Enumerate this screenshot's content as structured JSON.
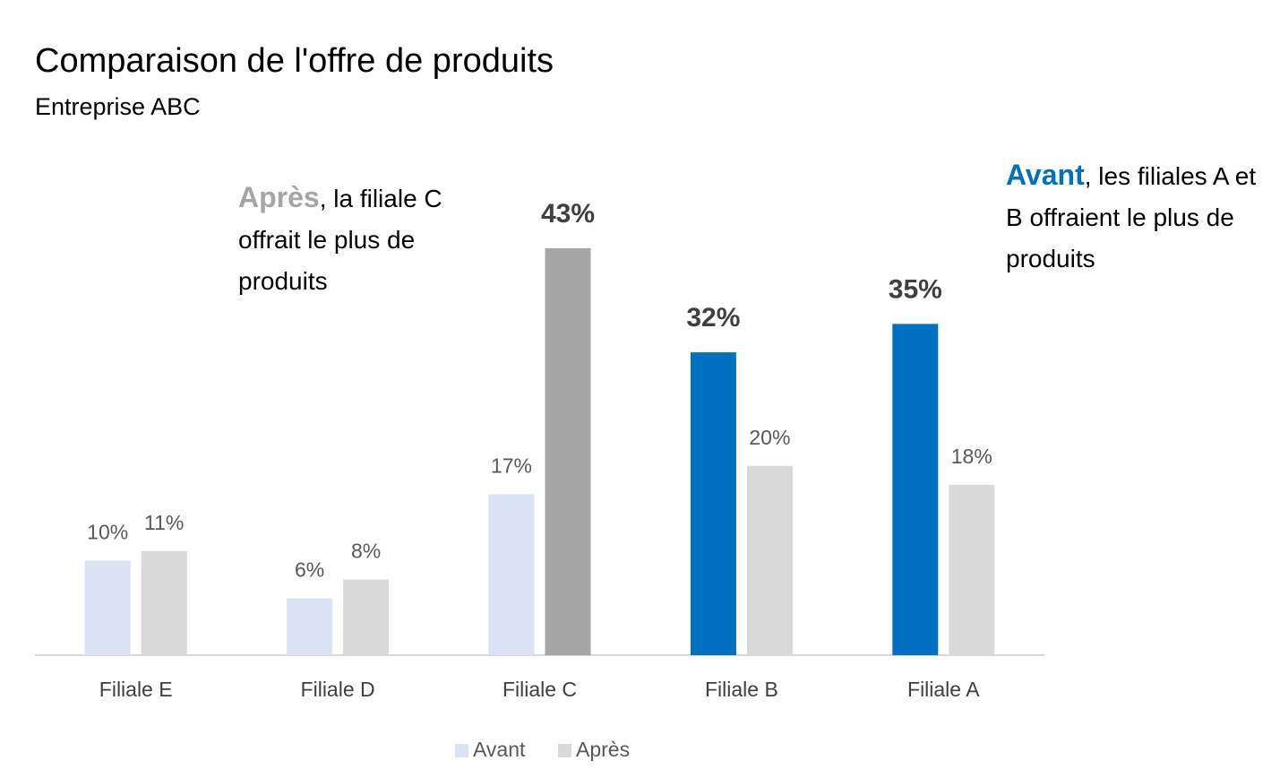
{
  "chart_data": {
    "type": "bar",
    "title": "Comparaison de l'offre de produits",
    "subtitle": "Entreprise ABC",
    "categories": [
      "Filiale E",
      "Filiale D",
      "Filiale C",
      "Filiale B",
      "Filiale A"
    ],
    "series": [
      {
        "name": "Avant",
        "color": "#dae3f3",
        "bar_colors": [
          "#dae3f3",
          "#dae3f3",
          "#dae3f3",
          "#0070c0",
          "#0070c0"
        ],
        "values": [
          10,
          6,
          17,
          32,
          35
        ],
        "value_labels": [
          "10%",
          "6%",
          "17%",
          "32%",
          "35%"
        ]
      },
      {
        "name": "Après",
        "color": "#d9d9d9",
        "bar_colors": [
          "#d9d9d9",
          "#d9d9d9",
          "#a6a6a6",
          "#d9d9d9",
          "#d9d9d9"
        ],
        "values": [
          11,
          8,
          43,
          20,
          18
        ],
        "value_labels": [
          "11%",
          "8%",
          "43%",
          "20%",
          "18%"
        ]
      }
    ],
    "ylim": [
      0,
      50
    ],
    "legend": "bottom",
    "annotations": [
      {
        "parts": [
          {
            "text": "Après",
            "color": "#a6a6a6",
            "bold": true
          },
          {
            "text": ", la filiale C offrait le plus de produits"
          }
        ]
      },
      {
        "parts": [
          {
            "text": "Avant",
            "color": "#0070c0",
            "bold": true
          },
          {
            "text": ", les filiales A et B offraient le plus de produits"
          }
        ]
      }
    ]
  }
}
